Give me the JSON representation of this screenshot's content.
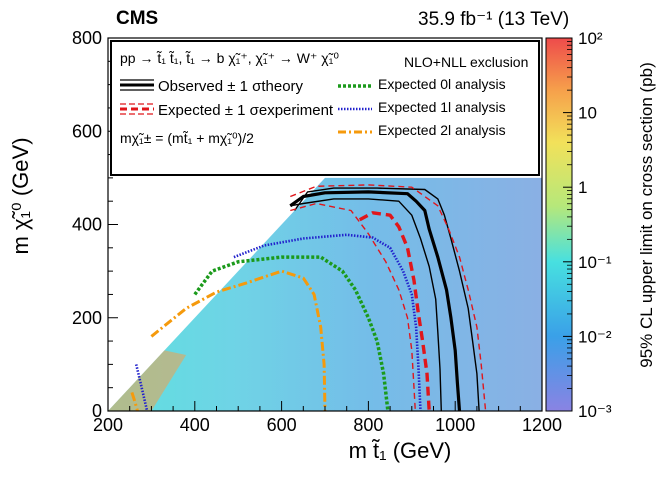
{
  "header": {
    "experiment": "CMS",
    "luminosity": "35.9 fb⁻¹ (13 TeV)"
  },
  "legend": {
    "process": "pp → t̃₁ t̃₁, t̃₁ → b χ̃₁⁺, χ̃₁⁺ → W⁺ χ̃₁⁰",
    "nlo_label": "NLO+NLL exclusion",
    "observed": "Observed ± 1 σtheory",
    "expected": "Expected ± 1 σexperiment",
    "mass_relation": "mχ̃₁± = (mt̃₁ + mχ̃₁⁰)/2",
    "exp0l": "Expected 0l analysis",
    "exp1l": "Expected 1l analysis",
    "exp2l": "Expected 2l analysis"
  },
  "colors": {
    "observed": "#000000",
    "expected": "#e0161b",
    "exp0l": "#1b9a1b",
    "exp1l": "#2222cc",
    "exp2l": "#f59a0c"
  },
  "chart_data": {
    "type": "heatmap",
    "xlabel": "m t̃₁ (GeV)",
    "ylabel": "m χ̃₁⁰ (GeV)",
    "zlabel": "95% CL upper limit on cross section (pb)",
    "xlim": [
      200,
      1200
    ],
    "ylim": [
      0,
      800
    ],
    "zlim_log10": [
      -3,
      2
    ],
    "xticks": [
      200,
      400,
      600,
      800,
      1000,
      1200
    ],
    "yticks": [
      0,
      200,
      400,
      600,
      800
    ],
    "z_ticks": [
      "10⁻³",
      "10⁻²",
      "10⁻¹",
      "1",
      "10",
      "10²"
    ],
    "diagonal": "m χ̃₁⁰ = m t̃₁ − 200",
    "colormap": [
      {
        "stop": 0.0,
        "color": "#8a83e3"
      },
      {
        "stop": 0.2,
        "color": "#3aa0e8"
      },
      {
        "stop": 0.4,
        "color": "#47e0e0"
      },
      {
        "stop": 0.55,
        "color": "#b6e87a"
      },
      {
        "stop": 0.72,
        "color": "#f2e15a"
      },
      {
        "stop": 0.86,
        "color": "#f6a04b"
      },
      {
        "stop": 1.0,
        "color": "#ee4b4b"
      }
    ],
    "curves": [
      {
        "name": "observed",
        "style": "solid-thick",
        "points": [
          [
            620,
            440
          ],
          [
            650,
            460
          ],
          [
            700,
            468
          ],
          [
            800,
            470
          ],
          [
            890,
            466
          ],
          [
            910,
            450
          ],
          [
            930,
            430
          ],
          [
            940,
            390
          ],
          [
            960,
            330
          ],
          [
            980,
            260
          ],
          [
            990,
            200
          ],
          [
            1000,
            130
          ],
          [
            1005,
            60
          ],
          [
            1010,
            0
          ]
        ]
      },
      {
        "name": "observed_plus",
        "style": "solid-thin",
        "points": [
          [
            630,
            430
          ],
          [
            660,
            470
          ],
          [
            720,
            478
          ],
          [
            820,
            478
          ],
          [
            930,
            475
          ],
          [
            960,
            455
          ],
          [
            975,
            420
          ],
          [
            990,
            370
          ],
          [
            1010,
            300
          ],
          [
            1030,
            220
          ],
          [
            1040,
            150
          ],
          [
            1050,
            80
          ],
          [
            1055,
            0
          ]
        ]
      },
      {
        "name": "observed_minus",
        "style": "solid-thin",
        "points": [
          [
            620,
            440
          ],
          [
            650,
            445
          ],
          [
            720,
            455
          ],
          [
            800,
            455
          ],
          [
            870,
            450
          ],
          [
            900,
            420
          ],
          [
            920,
            370
          ],
          [
            940,
            310
          ],
          [
            955,
            240
          ],
          [
            960,
            170
          ],
          [
            965,
            90
          ],
          [
            968,
            0
          ]
        ]
      },
      {
        "name": "expected",
        "style": "dashed-thick",
        "points": [
          [
            780,
            410
          ],
          [
            810,
            425
          ],
          [
            850,
            420
          ],
          [
            870,
            395
          ],
          [
            890,
            350
          ],
          [
            905,
            280
          ],
          [
            915,
            210
          ],
          [
            925,
            150
          ],
          [
            935,
            80
          ],
          [
            940,
            0
          ]
        ]
      },
      {
        "name": "expected_plus",
        "style": "dashed-thin",
        "points": [
          [
            620,
            460
          ],
          [
            680,
            482
          ],
          [
            800,
            485
          ],
          [
            900,
            480
          ],
          [
            960,
            440
          ],
          [
            985,
            390
          ],
          [
            1010,
            330
          ],
          [
            1030,
            260
          ],
          [
            1050,
            180
          ],
          [
            1060,
            100
          ],
          [
            1070,
            0
          ]
        ]
      },
      {
        "name": "expected_minus",
        "style": "dashed-thin",
        "points": [
          [
            620,
            430
          ],
          [
            680,
            445
          ],
          [
            760,
            430
          ],
          [
            800,
            380
          ],
          [
            840,
            320
          ],
          [
            870,
            260
          ],
          [
            890,
            200
          ],
          [
            900,
            130
          ],
          [
            905,
            50
          ],
          [
            908,
            0
          ]
        ]
      },
      {
        "name": "exp0l",
        "style": "dotted-thick",
        "points": [
          [
            400,
            250
          ],
          [
            440,
            300
          ],
          [
            500,
            320
          ],
          [
            600,
            330
          ],
          [
            690,
            330
          ],
          [
            740,
            300
          ],
          [
            770,
            260
          ],
          [
            800,
            200
          ],
          [
            820,
            150
          ],
          [
            835,
            80
          ],
          [
            845,
            0
          ]
        ]
      },
      {
        "name": "exp1l",
        "style": "dotted-thin",
        "points": [
          [
            490,
            330
          ],
          [
            560,
            355
          ],
          [
            650,
            370
          ],
          [
            750,
            378
          ],
          [
            810,
            372
          ],
          [
            850,
            350
          ],
          [
            880,
            300
          ],
          [
            900,
            250
          ],
          [
            910,
            180
          ],
          [
            915,
            100
          ],
          [
            920,
            0
          ]
        ]
      },
      {
        "name": "exp1l_low",
        "style": "dotted-thin",
        "points": [
          [
            265,
            100
          ],
          [
            275,
            60
          ],
          [
            290,
            0
          ]
        ]
      },
      {
        "name": "exp2l",
        "style": "dashdot-thick",
        "points": [
          [
            300,
            160
          ],
          [
            380,
            220
          ],
          [
            450,
            255
          ],
          [
            520,
            275
          ],
          [
            600,
            300
          ],
          [
            650,
            285
          ],
          [
            675,
            250
          ],
          [
            690,
            180
          ],
          [
            698,
            100
          ],
          [
            700,
            0
          ]
        ]
      },
      {
        "name": "exp2l_low",
        "style": "dashdot-thick",
        "points": [
          [
            255,
            40
          ],
          [
            262,
            20
          ],
          [
            268,
            0
          ]
        ]
      }
    ]
  }
}
